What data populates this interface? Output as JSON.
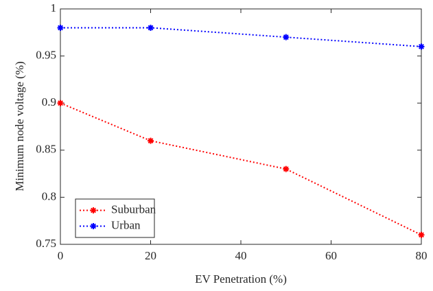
{
  "chart_data": {
    "type": "line",
    "x_label": "EV Penetration (%)",
    "y_label": "Minimum node voltage (%)",
    "x": [
      0,
      20,
      50,
      80
    ],
    "series": [
      {
        "name": "Suburban",
        "color": "#ff0000",
        "values": [
          0.9,
          0.86,
          0.83,
          0.76
        ]
      },
      {
        "name": "Urban",
        "color": "#0000ff",
        "values": [
          0.98,
          0.98,
          0.97,
          0.96
        ]
      }
    ],
    "xlim": [
      0,
      80
    ],
    "xticks": [
      0,
      20,
      40,
      60,
      80
    ],
    "ylim": [
      0.75,
      1
    ],
    "yticks": [
      0.75,
      0.8,
      0.85,
      0.9,
      0.95,
      1
    ],
    "grid": false,
    "legend": "southwest",
    "line_style": "dotted"
  }
}
